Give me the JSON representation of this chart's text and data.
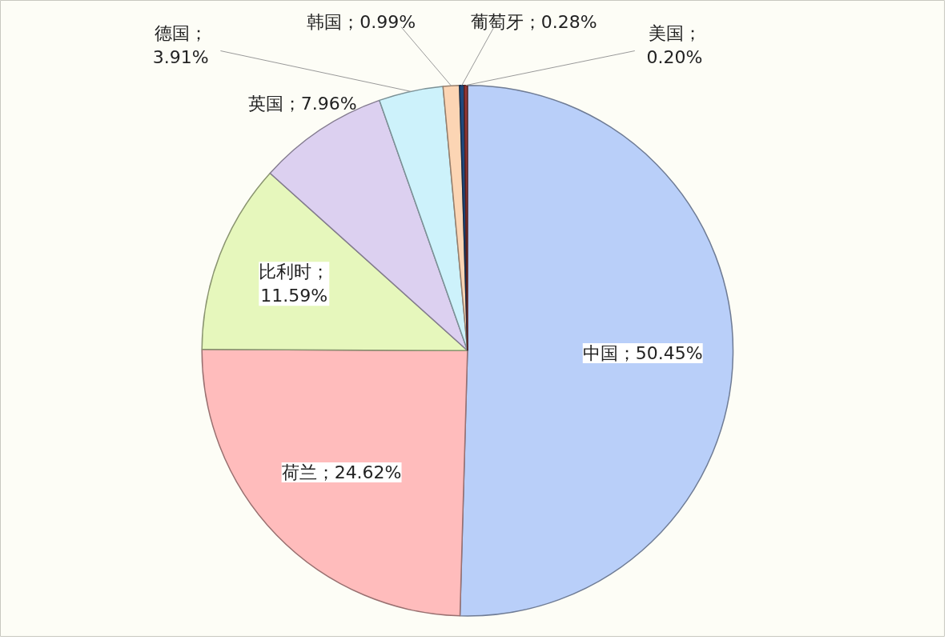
{
  "chart_data": {
    "type": "pie",
    "categories": [
      "中国",
      "荷兰",
      "比利时",
      "英国",
      "德国",
      "韩国",
      "葡萄牙",
      "美国"
    ],
    "values": [
      50.45,
      24.62,
      11.59,
      7.96,
      3.91,
      0.99,
      0.28,
      0.2
    ],
    "value_labels": [
      "；50.45%",
      "；24.62%",
      "；\n11.59%",
      "；7.96%",
      "；\n3.91%",
      "；0.99%",
      "；0.28%",
      "；\n0.20%"
    ],
    "colors": [
      "#b9cff9",
      "#ffbcbc",
      "#e6f7bc",
      "#dcd0f0",
      "#cdf2fb",
      "#fcd5b4",
      "#1f497d",
      "#953735"
    ]
  }
}
